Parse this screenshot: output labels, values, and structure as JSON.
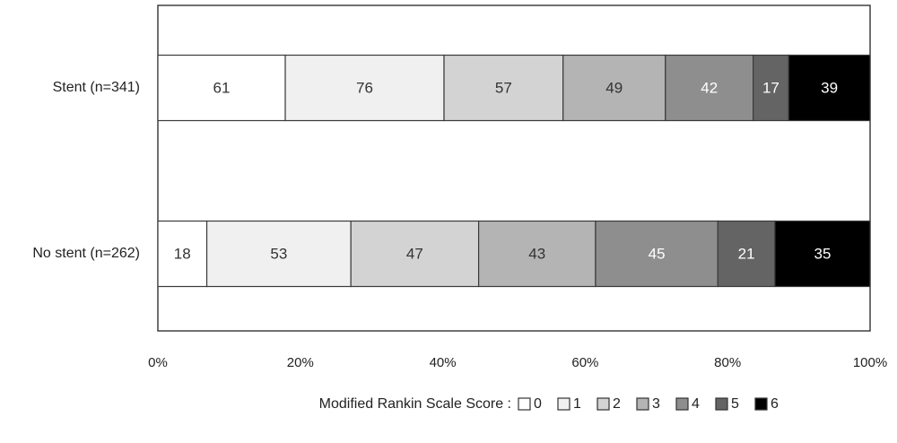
{
  "chart_data": {
    "type": "bar",
    "orientation": "horizontal",
    "stacked": "percent",
    "categories": [
      "Stent (n=341)",
      "No stent (n=262)"
    ],
    "series": [
      {
        "name": "0",
        "values": [
          61,
          18
        ],
        "color": "#ffffff",
        "label_color": "#333333"
      },
      {
        "name": "1",
        "values": [
          76,
          53
        ],
        "color": "#f0f0f0",
        "label_color": "#333333"
      },
      {
        "name": "2",
        "values": [
          57,
          47
        ],
        "color": "#d3d3d3",
        "label_color": "#333333"
      },
      {
        "name": "3",
        "values": [
          49,
          43
        ],
        "color": "#b4b4b4",
        "label_color": "#333333"
      },
      {
        "name": "4",
        "values": [
          42,
          45
        ],
        "color": "#8e8e8e",
        "label_color": "#ffffff"
      },
      {
        "name": "5",
        "values": [
          17,
          21
        ],
        "color": "#646464",
        "label_color": "#ffffff"
      },
      {
        "name": "6",
        "values": [
          39,
          35
        ],
        "color": "#000000",
        "label_color": "#ffffff"
      }
    ],
    "x_ticks": [
      "0%",
      "20%",
      "40%",
      "60%",
      "80%",
      "100%"
    ],
    "xlim": [
      0,
      100
    ],
    "grid": false,
    "legend": {
      "title": "Modified Rankin Scale Score :",
      "placement": "bottom-center"
    }
  }
}
